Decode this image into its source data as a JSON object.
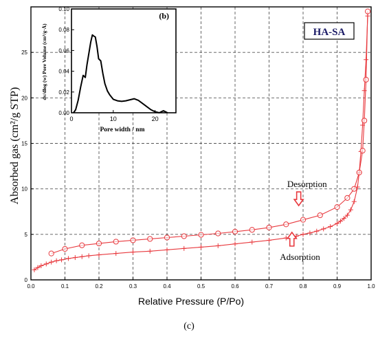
{
  "figure_label": "(c)",
  "chart_data": [
    {
      "type": "line",
      "badge": "HA-SA",
      "xlabel": "Relative Pressure (P/Po)",
      "ylabel": "Absorbed gas (cm²/g STP)",
      "xlim": [
        0,
        1.0
      ],
      "ylim": [
        0,
        30
      ],
      "x_ticks": [
        0.0,
        0.1,
        0.2,
        0.3,
        0.4,
        0.5,
        0.6,
        0.7,
        0.8,
        0.9,
        1.0
      ],
      "x_tick_labels": [
        "0.0",
        "0.1",
        "0.2",
        "0.3",
        "0.4",
        "0.5",
        "0.6",
        "0.7",
        "0.8",
        "0.9",
        "1.0"
      ],
      "y_ticks": [
        0,
        5,
        10,
        15,
        20,
        25
      ],
      "y_tick_labels": [
        "0",
        "5",
        "10",
        "15",
        "20",
        "25"
      ],
      "grid": true,
      "colors": {
        "series": "#e8383d",
        "arrow": "#e8383d",
        "grid": "#555555",
        "badge_text": "#1a1a66"
      },
      "annotations": [
        {
          "text": "Desorption",
          "x": 0.87,
          "y": 10.2,
          "arrow": "down"
        },
        {
          "text": "Adsorption",
          "x": 0.85,
          "y": 2.2,
          "arrow": "up"
        }
      ],
      "series": [
        {
          "role": "adsorption",
          "marker": "plus",
          "x": [
            0.01,
            0.02,
            0.03,
            0.045,
            0.06,
            0.075,
            0.09,
            0.11,
            0.13,
            0.15,
            0.17,
            0.2,
            0.25,
            0.3,
            0.35,
            0.4,
            0.45,
            0.5,
            0.55,
            0.6,
            0.65,
            0.7,
            0.75,
            0.78,
            0.8,
            0.82,
            0.84,
            0.86,
            0.88,
            0.9,
            0.91,
            0.92,
            0.93,
            0.94,
            0.95,
            0.96,
            0.965,
            0.97,
            0.975,
            0.98,
            0.985,
            0.99
          ],
          "y": [
            1.1,
            1.35,
            1.55,
            1.75,
            1.95,
            2.1,
            2.2,
            2.35,
            2.45,
            2.55,
            2.65,
            2.75,
            2.9,
            3.05,
            3.15,
            3.3,
            3.45,
            3.6,
            3.75,
            3.95,
            4.15,
            4.35,
            4.6,
            4.8,
            5.0,
            5.15,
            5.35,
            5.6,
            5.85,
            6.2,
            6.45,
            6.75,
            7.1,
            7.7,
            8.6,
            10.2,
            11.8,
            14.1,
            17.0,
            20.8,
            24.2,
            29.0
          ]
        },
        {
          "role": "desorption",
          "marker": "circle",
          "x": [
            0.06,
            0.1,
            0.15,
            0.2,
            0.25,
            0.3,
            0.35,
            0.4,
            0.45,
            0.5,
            0.55,
            0.6,
            0.65,
            0.7,
            0.75,
            0.8,
            0.85,
            0.9,
            0.93,
            0.95,
            0.965,
            0.975,
            0.98,
            0.985,
            0.99
          ],
          "y": [
            2.9,
            3.4,
            3.8,
            4.0,
            4.2,
            4.35,
            4.5,
            4.65,
            4.8,
            4.95,
            5.1,
            5.3,
            5.5,
            5.75,
            6.1,
            6.6,
            7.1,
            8.0,
            9.0,
            10.0,
            11.8,
            14.2,
            17.5,
            22.0,
            29.5
          ]
        }
      ]
    },
    {
      "type": "line",
      "panel_label": "(b)",
      "xlabel": "Pore width / nm",
      "ylabel": "dv/dlog (w) Pore Volume (cm³/g·Å)",
      "xlim": [
        0,
        25
      ],
      "ylim": [
        0,
        0.1
      ],
      "x_ticks": [
        0,
        10,
        20
      ],
      "x_tick_labels": [
        "0",
        "10",
        "20"
      ],
      "y_ticks": [
        0,
        0.02,
        0.04,
        0.06,
        0.08,
        0.1
      ],
      "y_tick_labels": [
        "0.00",
        "0.02",
        "0.04",
        "0.06",
        "0.08",
        "0.10"
      ],
      "grid": false,
      "colors": {
        "line": "#000000"
      },
      "series": [
        {
          "x": [
            0.5,
            1.0,
            1.6,
            2.2,
            2.8,
            3.3,
            3.7,
            4.2,
            4.6,
            5.0,
            5.3,
            5.7,
            6.1,
            6.5,
            7.0,
            7.5,
            8.0,
            8.6,
            9.2,
            10.0,
            11.0,
            12.0,
            13.0,
            14.0,
            15.0,
            16.0,
            17.0,
            18.0,
            19.0,
            20.0,
            21.0,
            22.0,
            23.0
          ],
          "y": [
            0.0,
            0.003,
            0.012,
            0.025,
            0.036,
            0.034,
            0.046,
            0.058,
            0.068,
            0.075,
            0.074,
            0.073,
            0.064,
            0.052,
            0.05,
            0.038,
            0.028,
            0.021,
            0.017,
            0.013,
            0.0115,
            0.011,
            0.0115,
            0.0125,
            0.0135,
            0.012,
            0.009,
            0.006,
            0.003,
            0.001,
            0.0,
            0.002,
            0.0
          ]
        }
      ]
    }
  ]
}
